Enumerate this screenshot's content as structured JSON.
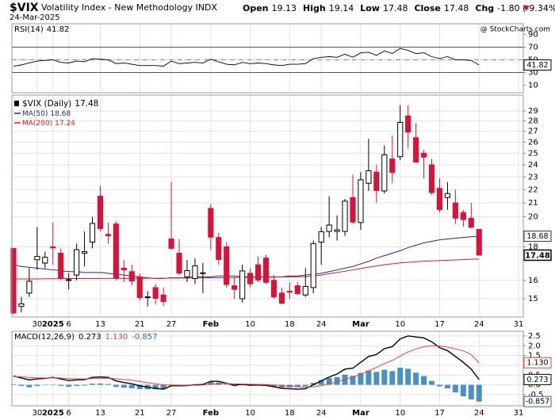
{
  "header": {
    "symbol": "$VIX",
    "name": "Volatility Index - New Methodology INDX",
    "date": "24-Mar-2025",
    "watermark": "@ StockCharts.com",
    "quote": [
      [
        "Open",
        "19.13"
      ],
      [
        "High",
        "19.14"
      ],
      [
        "Low",
        "17.48"
      ],
      [
        "Close",
        "17.48"
      ],
      [
        "Chg",
        "-1.80 (-9.34%)"
      ]
    ]
  },
  "chart_data": [
    {
      "type": "line",
      "title": "RSI(14)",
      "color": "#000000",
      "values": [
        40,
        42,
        45,
        48,
        49,
        50,
        46,
        45,
        48,
        47,
        52,
        51,
        50,
        44,
        45,
        43,
        41,
        41,
        41,
        40,
        48,
        44,
        45,
        46,
        45,
        51,
        47,
        43,
        42,
        46,
        44,
        45,
        44,
        42,
        41,
        43,
        43,
        44,
        52,
        54,
        55,
        54,
        59,
        54,
        61,
        62,
        57,
        64,
        60,
        68,
        65,
        60,
        61,
        55,
        52,
        55,
        50,
        50,
        49,
        41.82
      ],
      "ylim": [
        -2,
        107
      ],
      "yticks": [
        90,
        70,
        50,
        30,
        10
      ],
      "overbought": 70,
      "oversold": 30,
      "midline": 50,
      "grid": false
    },
    {
      "type": "candlestick",
      "title": "$VIX (Daily)",
      "log_scale": true,
      "grid": true,
      "up_color": "#000000",
      "down_color": "#d6143a",
      "categories": [
        null,
        null,
        null,
        "30",
        null,
        "2025",
        null,
        "6",
        null,
        null,
        null,
        "13",
        null,
        null,
        null,
        null,
        "21",
        null,
        null,
        null,
        "27",
        null,
        null,
        null,
        null,
        "Feb",
        null,
        null,
        null,
        null,
        "10",
        null,
        null,
        null,
        null,
        "18",
        null,
        null,
        null,
        "24",
        null,
        null,
        null,
        null,
        "Mar",
        null,
        null,
        null,
        null,
        "10",
        null,
        null,
        null,
        null,
        "17",
        null,
        null,
        null,
        null,
        "24",
        null,
        null,
        null,
        null,
        "31"
      ],
      "open": [
        17.9,
        14.6,
        15.3,
        17.2,
        17.0,
        18.0,
        17.6,
        16.0,
        16.3,
        17.6,
        18.3,
        21.5,
        18.8,
        19.5,
        16.7,
        16.5,
        16.2,
        15.1,
        15.6,
        15.2,
        18.5,
        17.6,
        16.2,
        16.1,
        16.4,
        20.6,
        18.6,
        18.0,
        15.7,
        15.0,
        16.4,
        16.9,
        17.3,
        16.0,
        15.3,
        15.4,
        15.7,
        15.2,
        15.6,
        18.3,
        19.0,
        19.0,
        19.0,
        21.4,
        19.6,
        22.5,
        23.4,
        21.9,
        24.5,
        24.7,
        28.5,
        26.4,
        25.0,
        24.0,
        22.1,
        21.4,
        21.0,
        20.3,
        19.9,
        19.13,
        null,
        null,
        null,
        null,
        null
      ],
      "high": [
        17.9,
        15.1,
        16.7,
        19.3,
        17.7,
        19.6,
        17.9,
        16.4,
        18.2,
        19.0,
        20.0,
        22.3,
        19.6,
        19.7,
        17.2,
        16.9,
        16.4,
        15.4,
        15.8,
        15.6,
        22.6,
        18.5,
        17.2,
        17.3,
        17.0,
        20.9,
        18.9,
        18.3,
        16.2,
        16.9,
        16.7,
        17.4,
        17.5,
        16.3,
        15.6,
        15.9,
        15.9,
        16.7,
        18.4,
        19.3,
        21.5,
        20.1,
        21.3,
        23.2,
        23.4,
        26.3,
        24.0,
        25.7,
        26.6,
        29.6,
        29.6,
        27.8,
        25.3,
        24.5,
        22.9,
        22.6,
        22.0,
        20.5,
        21.0,
        19.14,
        null,
        null,
        null,
        null,
        null
      ],
      "low": [
        14.2,
        14.3,
        15.1,
        16.6,
        16.7,
        16.9,
        16.0,
        15.5,
        16.0,
        16.8,
        17.9,
        19.0,
        18.2,
        16.0,
        15.9,
        15.7,
        14.9,
        14.6,
        14.7,
        14.6,
        17.8,
        16.3,
        15.9,
        15.8,
        15.3,
        17.8,
        16.9,
        15.6,
        15.0,
        14.8,
        15.6,
        15.9,
        15.8,
        15.0,
        14.7,
        15.0,
        15.2,
        15.1,
        15.3,
        16.9,
        18.6,
        18.4,
        18.7,
        19.5,
        19.1,
        21.9,
        21.0,
        21.7,
        22.5,
        24.4,
        25.4,
        24.2,
        22.9,
        21.6,
        20.3,
        20.5,
        19.5,
        19.3,
        19.2,
        17.48,
        null,
        null,
        null,
        null,
        null
      ],
      "close": [
        14.27,
        14.73,
        15.95,
        17.4,
        17.35,
        17.93,
        16.13,
        16.04,
        17.82,
        17.7,
        19.54,
        19.19,
        18.71,
        16.12,
        16.6,
        15.97,
        15.06,
        15.1,
        15.02,
        14.85,
        17.9,
        16.41,
        16.56,
        16.84,
        16.43,
        18.62,
        17.21,
        15.77,
        15.5,
        16.54,
        15.81,
        16.02,
        15.89,
        15.1,
        14.77,
        15.35,
        15.27,
        15.66,
        18.21,
        18.98,
        19.43,
        19.1,
        21.13,
        19.63,
        22.78,
        23.51,
        21.93,
        24.87,
        23.37,
        27.86,
        26.92,
        24.23,
        24.66,
        21.77,
        20.51,
        21.7,
        19.9,
        19.8,
        19.28,
        17.48,
        null,
        null,
        null,
        null,
        null
      ],
      "overlays": [
        {
          "name": "MA(50)",
          "color": "#1f2a8a",
          "values": [
            16.9,
            16.8,
            16.75,
            16.7,
            16.65,
            16.6,
            16.55,
            16.5,
            16.5,
            16.45,
            16.45,
            16.45,
            16.4,
            16.35,
            16.3,
            16.25,
            16.2,
            16.15,
            16.1,
            16.1,
            16.15,
            16.15,
            16.15,
            16.2,
            16.2,
            16.2,
            16.25,
            16.25,
            16.25,
            16.2,
            16.2,
            16.2,
            16.2,
            16.2,
            16.2,
            16.25,
            16.25,
            16.3,
            16.35,
            16.4,
            16.5,
            16.6,
            16.7,
            16.8,
            16.95,
            17.1,
            17.3,
            17.45,
            17.6,
            17.75,
            17.95,
            18.1,
            18.25,
            18.35,
            18.45,
            18.5,
            18.55,
            18.6,
            18.65,
            18.68,
            null,
            null,
            null,
            null,
            null
          ]
        },
        {
          "name": "MA(200)",
          "color": "#d0202e",
          "values": [
            16.08,
            16.08,
            16.08,
            16.08,
            16.09,
            16.09,
            16.1,
            16.1,
            16.1,
            16.1,
            16.1,
            16.11,
            16.11,
            16.11,
            16.11,
            16.12,
            16.12,
            16.12,
            16.12,
            16.12,
            16.13,
            16.13,
            16.13,
            16.14,
            16.14,
            16.15,
            16.15,
            16.15,
            16.16,
            16.16,
            16.17,
            16.17,
            16.18,
            16.18,
            16.19,
            16.19,
            16.2,
            16.21,
            16.25,
            16.3,
            16.38,
            16.45,
            16.52,
            16.6,
            16.68,
            16.76,
            16.83,
            16.9,
            16.96,
            17.01,
            17.05,
            17.08,
            17.11,
            17.13,
            17.15,
            17.17,
            17.19,
            17.21,
            17.23,
            17.24,
            null,
            null,
            null,
            null,
            null
          ]
        }
      ],
      "ylim": [
        14.07,
        30.66
      ],
      "yticks": [
        15,
        16,
        18,
        20,
        21,
        22,
        23,
        24,
        25,
        26,
        27,
        28,
        29
      ]
    },
    {
      "type": "macd",
      "title": "MACD(12,26,9)",
      "grid": true,
      "series": [
        {
          "style": "line",
          "color": "#000000",
          "values": [
            0.45,
            0.35,
            0.25,
            0.3,
            0.33,
            0.38,
            0.3,
            0.22,
            0.25,
            0.26,
            0.38,
            0.4,
            0.38,
            0.2,
            0.12,
            0.05,
            -0.05,
            -0.12,
            -0.18,
            -0.22,
            -0.05,
            -0.05,
            -0.04,
            0.0,
            0.02,
            0.18,
            0.18,
            0.08,
            -0.02,
            0.02,
            -0.02,
            -0.01,
            -0.03,
            -0.1,
            -0.18,
            -0.2,
            -0.22,
            -0.2,
            0.0,
            0.2,
            0.4,
            0.55,
            0.8,
            0.85,
            1.15,
            1.45,
            1.55,
            1.85,
            1.95,
            2.35,
            2.5,
            2.45,
            2.4,
            2.2,
            1.9,
            1.75,
            1.45,
            1.15,
            0.8,
            0.273
          ]
        },
        {
          "style": "line",
          "color": "#e8413a",
          "values": [
            0.42,
            0.41,
            0.38,
            0.36,
            0.35,
            0.36,
            0.35,
            0.32,
            0.31,
            0.3,
            0.32,
            0.33,
            0.34,
            0.31,
            0.27,
            0.23,
            0.17,
            0.11,
            0.05,
            0.0,
            -0.01,
            -0.02,
            -0.02,
            -0.02,
            -0.01,
            0.03,
            0.06,
            0.06,
            0.05,
            0.04,
            0.03,
            0.02,
            0.01,
            -0.01,
            -0.04,
            -0.07,
            -0.1,
            -0.12,
            -0.1,
            -0.04,
            0.05,
            0.15,
            0.28,
            0.39,
            0.54,
            0.72,
            0.89,
            1.08,
            1.25,
            1.47,
            1.68,
            1.83,
            1.95,
            2.0,
            1.98,
            1.93,
            1.84,
            1.74,
            1.55,
            1.13
          ],
          "value_labels": [
            null,
            null,
            null,
            null,
            null,
            null,
            null,
            null,
            null,
            null,
            null,
            null,
            null,
            null,
            null,
            null,
            null,
            null,
            null,
            null,
            null,
            null,
            null,
            null,
            null,
            null,
            null,
            null,
            null,
            null,
            null,
            null,
            null,
            null,
            null,
            null,
            null,
            null,
            null,
            null,
            null,
            null,
            null,
            null,
            null,
            null,
            null,
            null,
            null,
            null,
            null,
            null,
            null,
            null,
            null,
            null,
            null,
            null,
            null,
            "1.130"
          ]
        },
        {
          "style": "bar",
          "color": "#4a90c2",
          "values": [
            0.03,
            -0.06,
            -0.13,
            -0.06,
            -0.02,
            0.02,
            -0.05,
            -0.1,
            -0.06,
            -0.04,
            0.06,
            0.07,
            0.04,
            -0.11,
            -0.15,
            -0.18,
            -0.22,
            -0.23,
            -0.23,
            -0.22,
            -0.04,
            -0.03,
            -0.02,
            0.02,
            0.03,
            0.15,
            0.12,
            0.02,
            -0.07,
            -0.02,
            -0.05,
            -0.03,
            -0.04,
            -0.09,
            -0.14,
            -0.13,
            -0.12,
            -0.08,
            0.1,
            0.24,
            0.35,
            0.4,
            0.52,
            0.46,
            0.61,
            0.73,
            0.66,
            0.77,
            0.7,
            0.88,
            0.82,
            0.62,
            0.45,
            0.2,
            -0.08,
            -0.18,
            -0.39,
            -0.59,
            -0.75,
            -0.857
          ]
        }
      ],
      "ylim": [
        -1.07,
        2.74
      ],
      "yticks": [
        2.5,
        {
          "value": 2,
          "label": "2.0"
        },
        1.5,
        {
          "value": 1,
          "label": "1.0"
        },
        0.5,
        {
          "value": 0,
          "label": "0.0"
        },
        -0.5
      ]
    }
  ]
}
